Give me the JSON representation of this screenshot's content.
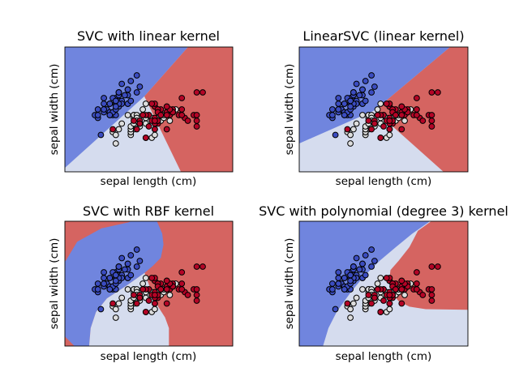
{
  "chart_data": [
    {
      "type": "scatter",
      "title": "SVC with linear kernel",
      "xlabel": "sepal length (cm)",
      "ylabel": "sepal width (cm)",
      "xlim": [
        3.3,
        8.9
      ],
      "ylim": [
        1.0,
        5.4
      ],
      "regions": {
        "class0": [
          [
            3.3,
            5.4
          ],
          [
            7.41,
            5.4
          ],
          [
            5.95,
            3.66
          ],
          [
            3.3,
            1.14
          ]
        ],
        "class2": [
          [
            7.41,
            5.4
          ],
          [
            8.9,
            5.4
          ],
          [
            8.9,
            1.0
          ],
          [
            7.17,
            1.0
          ],
          [
            5.95,
            3.66
          ]
        ]
      }
    },
    {
      "type": "scatter",
      "title": "LinearSVC (linear kernel)",
      "xlabel": "sepal length (cm)",
      "ylabel": "sepal width (cm)",
      "xlim": [
        3.3,
        8.9
      ],
      "ylim": [
        1.0,
        5.4
      ],
      "regions": {
        "class0": [
          [
            3.3,
            5.4
          ],
          [
            8.31,
            5.4
          ],
          [
            5.8,
            3.17
          ],
          [
            3.3,
            2.0
          ]
        ],
        "class2": [
          [
            8.31,
            5.4
          ],
          [
            8.9,
            5.4
          ],
          [
            8.9,
            1.0
          ],
          [
            8.09,
            1.0
          ],
          [
            5.8,
            3.17
          ]
        ]
      }
    },
    {
      "type": "scatter",
      "title": "SVC with RBF kernel",
      "xlabel": "sepal length (cm)",
      "ylabel": "sepal width (cm)",
      "xlim": [
        3.3,
        8.9
      ],
      "ylim": [
        1.0,
        5.4
      ],
      "regions": {
        "base": "class2",
        "class0": [
          [
            3.33,
            4.01
          ],
          [
            3.71,
            4.68
          ],
          [
            4.52,
            5.15
          ],
          [
            5.42,
            5.36
          ],
          [
            5.51,
            5.4
          ],
          [
            6.37,
            5.4
          ],
          [
            6.55,
            4.96
          ],
          [
            6.59,
            4.58
          ],
          [
            6.5,
            4.11
          ],
          [
            6.23,
            3.82
          ],
          [
            5.96,
            3.58
          ],
          [
            5.33,
            3.11
          ],
          [
            4.7,
            2.68
          ],
          [
            4.34,
            2.2
          ],
          [
            4.16,
            1.63
          ],
          [
            4.11,
            1.0
          ],
          [
            3.62,
            1.0
          ],
          [
            3.3,
            1.34
          ],
          [
            3.3,
            4.01
          ]
        ],
        "class1": [
          [
            5.96,
            3.58
          ],
          [
            5.33,
            3.11
          ],
          [
            4.7,
            2.68
          ],
          [
            4.34,
            2.2
          ],
          [
            4.16,
            1.63
          ],
          [
            4.11,
            1.0
          ],
          [
            6.77,
            1.0
          ],
          [
            6.77,
            1.63
          ],
          [
            6.64,
            2.01
          ],
          [
            6.41,
            2.39
          ],
          [
            6.14,
            3.06
          ]
        ]
      }
    },
    {
      "type": "scatter",
      "title": "SVC with polynomial (degree 3) kernel",
      "xlabel": "sepal length (cm)",
      "ylabel": "sepal width (cm)",
      "xlim": [
        3.3,
        8.9
      ],
      "ylim": [
        1.0,
        5.4
      ],
      "regions": {
        "class0": [
          [
            3.3,
            5.4
          ],
          [
            7.62,
            5.4
          ],
          [
            7.59,
            5.36
          ],
          [
            7.05,
            4.96
          ],
          [
            6.51,
            4.49
          ],
          [
            5.97,
            4.01
          ],
          [
            5.43,
            3.44
          ],
          [
            4.99,
            2.87
          ],
          [
            4.54,
            2.2
          ],
          [
            4.27,
            1.63
          ],
          [
            4.09,
            1.0
          ],
          [
            3.3,
            1.0
          ]
        ],
        "class2": [
          [
            7.68,
            5.4
          ],
          [
            8.9,
            5.4
          ],
          [
            8.9,
            2.28
          ],
          [
            7.5,
            2.3
          ],
          [
            6.96,
            2.39
          ],
          [
            6.6,
            2.58
          ],
          [
            6.38,
            2.87
          ],
          [
            6.29,
            3.34
          ],
          [
            6.33,
            3.68
          ],
          [
            6.6,
            4.01
          ],
          [
            6.96,
            4.49
          ],
          [
            7.24,
            5.06
          ]
        ]
      }
    }
  ],
  "points": {
    "class0": [
      [
        5.1,
        3.5
      ],
      [
        4.9,
        3.0
      ],
      [
        4.7,
        3.2
      ],
      [
        4.6,
        3.1
      ],
      [
        5.0,
        3.6
      ],
      [
        5.4,
        3.9
      ],
      [
        4.6,
        3.4
      ],
      [
        5.0,
        3.4
      ],
      [
        4.4,
        2.9
      ],
      [
        4.9,
        3.1
      ],
      [
        5.4,
        3.7
      ],
      [
        4.8,
        3.4
      ],
      [
        4.8,
        3.0
      ],
      [
        4.3,
        3.0
      ],
      [
        5.8,
        4.0
      ],
      [
        5.7,
        4.4
      ],
      [
        5.4,
        3.9
      ],
      [
        5.1,
        3.5
      ],
      [
        5.7,
        3.8
      ],
      [
        5.1,
        3.8
      ],
      [
        5.4,
        3.4
      ],
      [
        5.1,
        3.7
      ],
      [
        4.6,
        3.6
      ],
      [
        5.1,
        3.3
      ],
      [
        4.8,
        3.4
      ],
      [
        5.0,
        3.0
      ],
      [
        5.0,
        3.4
      ],
      [
        5.2,
        3.5
      ],
      [
        5.2,
        3.4
      ],
      [
        4.7,
        3.2
      ],
      [
        4.8,
        3.1
      ],
      [
        5.4,
        3.4
      ],
      [
        5.2,
        4.1
      ],
      [
        5.5,
        4.2
      ],
      [
        4.9,
        3.1
      ],
      [
        5.0,
        3.2
      ],
      [
        5.5,
        3.5
      ],
      [
        4.9,
        3.6
      ],
      [
        4.4,
        3.0
      ],
      [
        5.1,
        3.4
      ],
      [
        5.0,
        3.5
      ],
      [
        4.5,
        2.3
      ],
      [
        4.4,
        3.2
      ],
      [
        5.0,
        3.5
      ],
      [
        5.1,
        3.8
      ],
      [
        4.8,
        3.0
      ],
      [
        5.1,
        3.8
      ],
      [
        4.6,
        3.2
      ],
      [
        5.3,
        3.7
      ],
      [
        5.0,
        3.3
      ]
    ],
    "class1": [
      [
        7.0,
        3.2
      ],
      [
        6.4,
        3.2
      ],
      [
        6.9,
        3.1
      ],
      [
        5.5,
        2.3
      ],
      [
        6.5,
        2.8
      ],
      [
        5.7,
        2.8
      ],
      [
        6.3,
        3.3
      ],
      [
        4.9,
        2.4
      ],
      [
        6.6,
        2.9
      ],
      [
        5.2,
        2.7
      ],
      [
        5.0,
        2.0
      ],
      [
        5.9,
        3.0
      ],
      [
        6.0,
        2.2
      ],
      [
        6.1,
        2.9
      ],
      [
        5.6,
        2.9
      ],
      [
        6.7,
        3.1
      ],
      [
        5.6,
        3.0
      ],
      [
        5.8,
        2.7
      ],
      [
        6.2,
        2.2
      ],
      [
        5.6,
        2.5
      ],
      [
        5.9,
        3.2
      ],
      [
        6.1,
        2.8
      ],
      [
        6.3,
        2.5
      ],
      [
        6.1,
        2.8
      ],
      [
        6.4,
        2.9
      ],
      [
        6.6,
        3.0
      ],
      [
        6.8,
        2.8
      ],
      [
        6.7,
        3.0
      ],
      [
        6.0,
        2.9
      ],
      [
        5.7,
        2.6
      ],
      [
        5.5,
        2.4
      ],
      [
        5.5,
        2.4
      ],
      [
        5.8,
        2.7
      ],
      [
        6.0,
        2.7
      ],
      [
        5.4,
        3.0
      ],
      [
        6.0,
        3.4
      ],
      [
        6.7,
        3.1
      ],
      [
        6.3,
        2.3
      ],
      [
        5.6,
        3.0
      ],
      [
        5.5,
        2.5
      ],
      [
        5.5,
        2.6
      ],
      [
        6.1,
        3.0
      ],
      [
        5.8,
        2.6
      ],
      [
        5.0,
        2.3
      ],
      [
        5.6,
        2.7
      ],
      [
        5.7,
        3.0
      ],
      [
        5.7,
        2.9
      ],
      [
        6.2,
        2.9
      ],
      [
        5.1,
        2.5
      ],
      [
        5.7,
        2.8
      ]
    ],
    "class2": [
      [
        6.3,
        3.3
      ],
      [
        5.8,
        2.7
      ],
      [
        7.1,
        3.0
      ],
      [
        6.3,
        2.9
      ],
      [
        6.5,
        3.0
      ],
      [
        7.6,
        3.0
      ],
      [
        4.9,
        2.5
      ],
      [
        7.3,
        2.9
      ],
      [
        6.7,
        2.5
      ],
      [
        7.2,
        3.6
      ],
      [
        6.5,
        3.2
      ],
      [
        6.4,
        2.7
      ],
      [
        6.8,
        3.0
      ],
      [
        5.7,
        2.5
      ],
      [
        5.8,
        2.8
      ],
      [
        6.4,
        3.2
      ],
      [
        6.5,
        3.0
      ],
      [
        7.7,
        3.8
      ],
      [
        7.7,
        2.6
      ],
      [
        6.0,
        2.2
      ],
      [
        6.9,
        3.2
      ],
      [
        5.6,
        2.8
      ],
      [
        7.7,
        2.8
      ],
      [
        6.3,
        2.7
      ],
      [
        6.7,
        3.3
      ],
      [
        7.2,
        3.2
      ],
      [
        6.2,
        2.8
      ],
      [
        6.1,
        3.0
      ],
      [
        6.4,
        2.8
      ],
      [
        7.2,
        3.0
      ],
      [
        7.4,
        2.8
      ],
      [
        7.9,
        3.8
      ],
      [
        6.4,
        2.8
      ],
      [
        6.3,
        2.8
      ],
      [
        6.1,
        2.6
      ],
      [
        7.7,
        3.0
      ],
      [
        6.3,
        3.4
      ],
      [
        6.4,
        3.1
      ],
      [
        6.0,
        3.0
      ],
      [
        6.9,
        3.1
      ],
      [
        6.7,
        3.1
      ],
      [
        6.9,
        3.1
      ],
      [
        5.8,
        2.7
      ],
      [
        6.8,
        3.2
      ],
      [
        6.7,
        3.3
      ],
      [
        6.7,
        3.0
      ],
      [
        6.3,
        2.5
      ],
      [
        6.5,
        3.0
      ],
      [
        6.2,
        3.4
      ],
      [
        5.9,
        3.0
      ]
    ]
  },
  "colors": {
    "region_class0": "#7085de",
    "region_class1": "#d5dcee",
    "region_class2": "#d56461",
    "point_class0": "#3b4cc0",
    "point_class1": "#dddddd",
    "point_class2": "#b40426",
    "edge": "#000000"
  }
}
